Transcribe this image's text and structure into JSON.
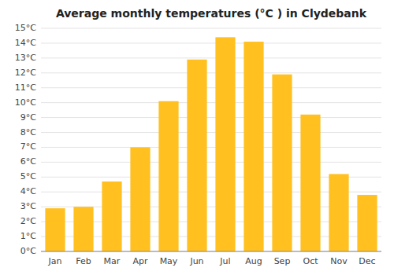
{
  "chart_data": {
    "type": "bar",
    "title": "Average monthly temperatures (°C ) in Clydebank",
    "categories": [
      "Jan",
      "Feb",
      "Mar",
      "Apr",
      "May",
      "Jun",
      "Jul",
      "Aug",
      "Sep",
      "Oct",
      "Nov",
      "Dec"
    ],
    "values": [
      2.9,
      3.0,
      4.7,
      7.0,
      10.1,
      12.9,
      14.4,
      14.1,
      11.9,
      9.2,
      5.2,
      3.8
    ],
    "color": "#FFC020",
    "ylim": [
      0,
      15
    ],
    "yticks": [
      {
        "value": 0,
        "label": "0°C"
      },
      {
        "value": 1,
        "label": "1°C"
      },
      {
        "value": 2,
        "label": "2°C"
      },
      {
        "value": 3,
        "label": "3°C"
      },
      {
        "value": 4,
        "label": "4°C"
      },
      {
        "value": 5,
        "label": "5°C"
      },
      {
        "value": 6,
        "label": "6°C"
      },
      {
        "value": 7,
        "label": "7°C"
      },
      {
        "value": 8,
        "label": "8°C"
      },
      {
        "value": 9,
        "label": "9°C"
      },
      {
        "value": 10,
        "label": "10°C"
      },
      {
        "value": 11,
        "label": "11°C"
      },
      {
        "value": 12,
        "label": "12°C"
      },
      {
        "value": 13,
        "label": "13°C"
      },
      {
        "value": 14,
        "label": "14°C"
      },
      {
        "value": 15,
        "label": "15°C"
      }
    ],
    "grid": true
  }
}
